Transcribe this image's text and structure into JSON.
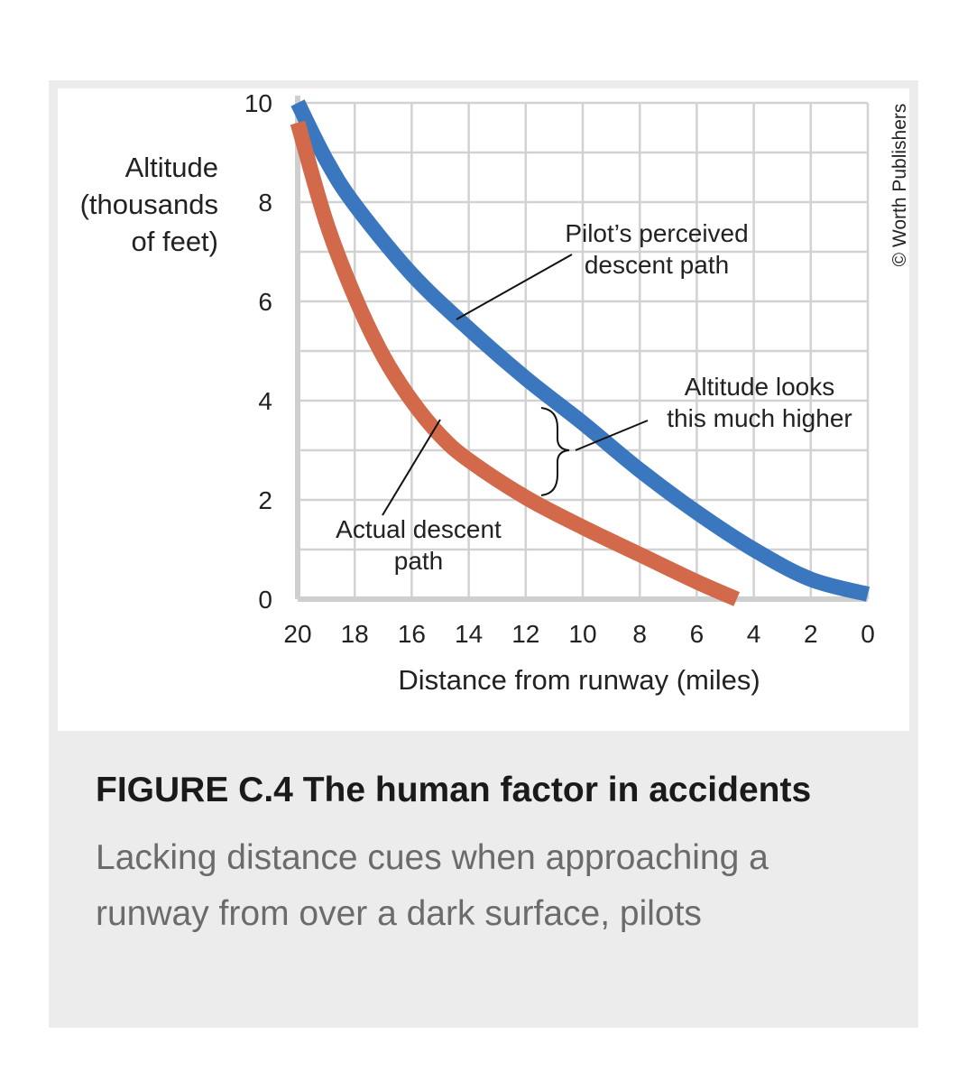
{
  "chart_data": {
    "type": "line",
    "xlabel": "Distance from runway (miles)",
    "ylabel": [
      "Altitude",
      "(thousands",
      "of feet)"
    ],
    "xlim": [
      20,
      0
    ],
    "ylim": [
      0,
      10
    ],
    "x_ticks": [
      20,
      18,
      16,
      14,
      12,
      10,
      8,
      6,
      4,
      2,
      0
    ],
    "y_ticks": [
      0,
      2,
      4,
      6,
      8,
      10
    ],
    "grid": true,
    "series": [
      {
        "name": "Pilot’s perceived descent path",
        "color": "#3a77bf",
        "points": [
          [
            20,
            10
          ],
          [
            19,
            8.85
          ],
          [
            18,
            7.95
          ],
          [
            16,
            6.55
          ],
          [
            14,
            5.45
          ],
          [
            12,
            4.45
          ],
          [
            10,
            3.55
          ],
          [
            8,
            2.6
          ],
          [
            6,
            1.75
          ],
          [
            4,
            1.0
          ],
          [
            2,
            0.4
          ],
          [
            0,
            0.1
          ]
        ]
      },
      {
        "name": "Actual descent path",
        "color": "#d2694b",
        "points": [
          [
            20,
            9.6
          ],
          [
            19,
            7.6
          ],
          [
            18,
            6.1
          ],
          [
            17,
            4.9
          ],
          [
            16,
            4.0
          ],
          [
            15,
            3.3
          ],
          [
            14,
            2.8
          ],
          [
            12,
            2.05
          ],
          [
            10,
            1.45
          ],
          [
            8,
            0.9
          ],
          [
            6,
            0.35
          ],
          [
            4.6,
            0
          ]
        ]
      }
    ],
    "annotations": [
      {
        "lines": [
          "Pilot’s perceived",
          "descent path"
        ]
      },
      {
        "lines": [
          "Altitude looks",
          "this much higher"
        ]
      },
      {
        "lines": [
          "Actual descent",
          "path"
        ]
      }
    ],
    "credit": "© Worth Publishers"
  },
  "caption": {
    "title": "FIGURE C.4 The human factor in accidents",
    "body": "Lacking distance cues when approaching a runway from over a dark surface, pilots"
  }
}
